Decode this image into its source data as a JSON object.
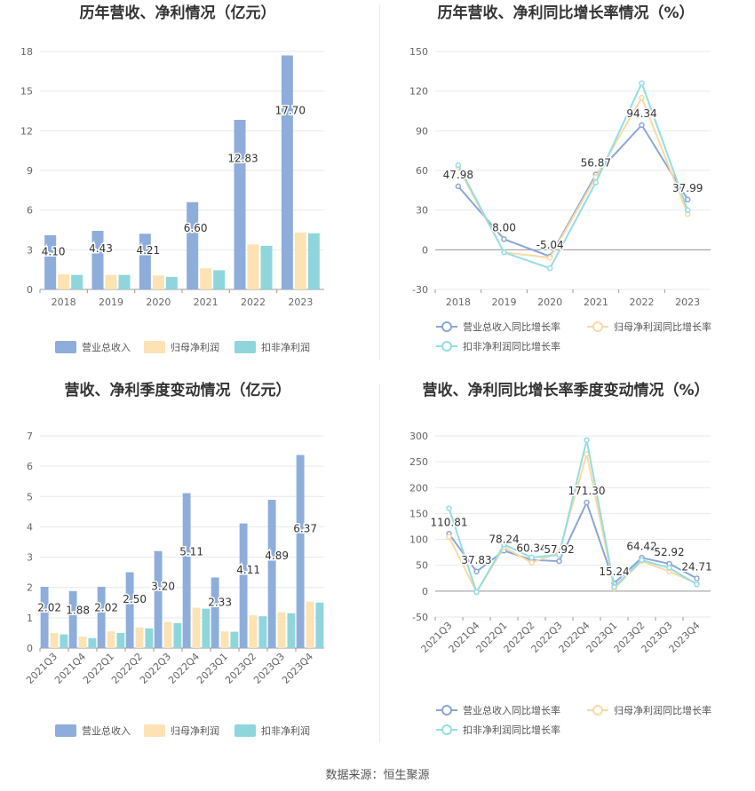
{
  "source": "数据来源：恒生聚源",
  "colors": {
    "revenue": "#8eaddb",
    "parent_profit": "#fde2b4",
    "nonrecurring_profit": "#8fd6dc",
    "grid": "#e6e9ef",
    "axis": "#999999"
  },
  "chart_data": [
    {
      "type": "bar",
      "title": "历年营收、净利情况（亿元）",
      "categories": [
        "2018",
        "2019",
        "2020",
        "2021",
        "2022",
        "2023"
      ],
      "series": [
        {
          "name": "营业总收入",
          "values": [
            4.1,
            4.43,
            4.21,
            6.6,
            12.83,
            17.7
          ],
          "labels": [
            "4.10",
            "4.43",
            "4.21",
            "6.60",
            "12.83",
            "17.70"
          ]
        },
        {
          "name": "归母净利润",
          "values": [
            1.15,
            1.1,
            1.05,
            1.6,
            3.4,
            4.3
          ]
        },
        {
          "name": "扣非净利润",
          "values": [
            1.1,
            1.1,
            0.95,
            1.45,
            3.3,
            4.25
          ]
        }
      ],
      "yticks": [
        "0",
        "3",
        "6",
        "9",
        "12",
        "15",
        "18"
      ],
      "ylim": [
        0,
        18
      ],
      "legend": "bottom"
    },
    {
      "type": "line",
      "title": "历年营收、净利同比增长率情况（%）",
      "categories": [
        "2018",
        "2019",
        "2020",
        "2021",
        "2022",
        "2023"
      ],
      "series": [
        {
          "name": "营业总收入同比增长率",
          "values": [
            47.98,
            8.0,
            -5.04,
            56.87,
            94.34,
            37.99
          ],
          "labels": [
            "47.98",
            "8.00",
            "-5.04",
            "56.87",
            "94.34",
            "37.99"
          ]
        },
        {
          "name": "归母净利润同比增长率",
          "values": [
            62,
            -2,
            -6,
            55,
            115,
            27
          ]
        },
        {
          "name": "扣非净利润同比增长率",
          "values": [
            64,
            -2,
            -14,
            51,
            126,
            30
          ]
        }
      ],
      "yticks": [
        "-30",
        "0",
        "30",
        "60",
        "90",
        "120",
        "150"
      ],
      "ylim": [
        -30,
        150
      ],
      "legend": "bottom"
    },
    {
      "type": "bar",
      "title": "营收、净利季度变动情况（亿元）",
      "categories": [
        "2021Q3",
        "2021Q4",
        "2022Q1",
        "2022Q2",
        "2022Q3",
        "2022Q4",
        "2023Q1",
        "2023Q2",
        "2023Q3",
        "2023Q4"
      ],
      "series": [
        {
          "name": "营业总收入",
          "values": [
            2.02,
            1.88,
            2.02,
            2.5,
            3.2,
            5.11,
            2.33,
            4.11,
            4.89,
            6.37
          ],
          "labels": [
            "2.02",
            "1.88",
            "2.02",
            "2.50",
            "3.20",
            "5.11",
            "2.33",
            "4.11",
            "4.89",
            "6.37"
          ]
        },
        {
          "name": "归母净利润",
          "values": [
            0.5,
            0.38,
            0.55,
            0.68,
            0.86,
            1.33,
            0.55,
            1.08,
            1.18,
            1.53
          ]
        },
        {
          "name": "扣非净利润",
          "values": [
            0.45,
            0.33,
            0.5,
            0.65,
            0.82,
            1.3,
            0.54,
            1.05,
            1.15,
            1.5
          ]
        }
      ],
      "yticks": [
        "0",
        "1",
        "2",
        "3",
        "4",
        "5",
        "6",
        "7"
      ],
      "ylim": [
        0,
        7
      ],
      "legend": "bottom"
    },
    {
      "type": "line",
      "title": "营收、净利同比增长率季度变动情况（%）",
      "categories": [
        "2021Q3",
        "2021Q4",
        "2022Q1",
        "2022Q2",
        "2022Q3",
        "2022Q4",
        "2023Q1",
        "2023Q2",
        "2023Q3",
        "2023Q4"
      ],
      "series": [
        {
          "name": "营业总收入同比增长率",
          "values": [
            110.81,
            37.83,
            78.24,
            60.34,
            57.92,
            171.3,
            15.24,
            64.42,
            52.92,
            24.71
          ],
          "labels": [
            "110.81",
            "37.83",
            "78.24",
            "60.34",
            "57.92",
            "171.30",
            "15.24",
            "64.42",
            "52.92",
            "24.71"
          ]
        },
        {
          "name": "归母净利润同比增长率",
          "values": [
            105,
            -2,
            85,
            55,
            75,
            265,
            5,
            58,
            38,
            15
          ]
        },
        {
          "name": "扣非净利润同比增长率",
          "values": [
            160,
            -2,
            90,
            65,
            70,
            292,
            8,
            60,
            45,
            13
          ]
        }
      ],
      "yticks": [
        "-50",
        "0",
        "50",
        "100",
        "150",
        "200",
        "250",
        "300"
      ],
      "ylim": [
        -50,
        300
      ],
      "legend": "bottom"
    }
  ]
}
